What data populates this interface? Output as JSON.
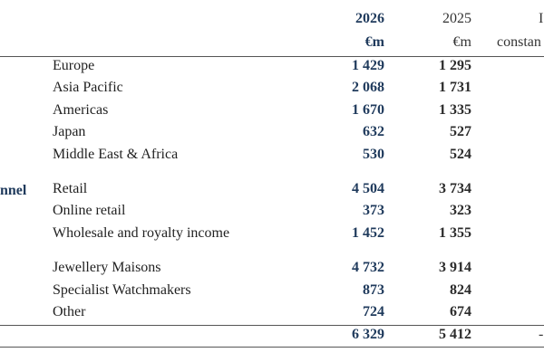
{
  "header": {
    "col_2026_year": "2026",
    "col_2026_unit": "€m",
    "col_2025_year": "2025",
    "col_2025_unit": "€m",
    "col_change_partial_top": "I",
    "col_change_partial_bottom": "constan"
  },
  "section_label_partial": "nnel",
  "rows": [
    {
      "label": "Europe",
      "v2026": "1 429",
      "v2025": "1 295"
    },
    {
      "label": "Asia Pacific",
      "v2026": "2 068",
      "v2025": "1 731"
    },
    {
      "label": "Americas",
      "v2026": "1 670",
      "v2025": "1 335"
    },
    {
      "label": "Japan",
      "v2026": "632",
      "v2025": "527"
    },
    {
      "label": "Middle East & Africa",
      "v2026": "530",
      "v2025": "524"
    },
    {
      "label": "Retail",
      "v2026": "4 504",
      "v2025": "3 734"
    },
    {
      "label": "Online retail",
      "v2026": "373",
      "v2025": "323"
    },
    {
      "label": "Wholesale and royalty income",
      "v2026": "1 452",
      "v2025": "1 355"
    },
    {
      "label": "Jewellery Maisons",
      "v2026": "4 732",
      "v2025": "3 914"
    },
    {
      "label": "Specialist Watchmakers",
      "v2026": "873",
      "v2025": "824"
    },
    {
      "label": "Other",
      "v2026": "724",
      "v2025": "674"
    }
  ],
  "total": {
    "v2026": "6 329",
    "v2025": "5 412",
    "partial": "-"
  }
}
